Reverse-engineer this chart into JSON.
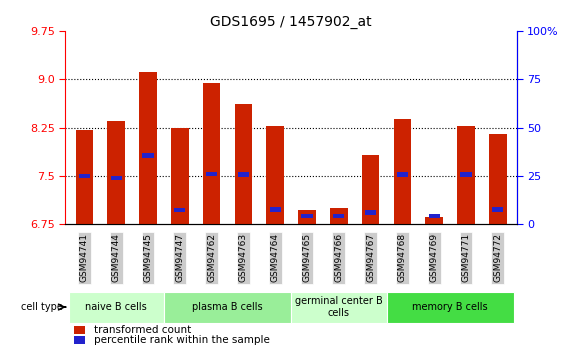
{
  "title": "GDS1695 / 1457902_at",
  "samples": [
    "GSM94741",
    "GSM94744",
    "GSM94745",
    "GSM94747",
    "GSM94762",
    "GSM94763",
    "GSM94764",
    "GSM94765",
    "GSM94766",
    "GSM94767",
    "GSM94768",
    "GSM94769",
    "GSM94771",
    "GSM94772"
  ],
  "transformed_count": [
    8.22,
    8.35,
    9.12,
    8.25,
    8.95,
    8.62,
    8.28,
    6.97,
    7.01,
    7.82,
    8.38,
    6.86,
    8.28,
    8.15
  ],
  "percentile_rank": [
    7.5,
    7.47,
    7.82,
    6.97,
    7.53,
    7.52,
    6.98,
    6.88,
    6.88,
    6.93,
    7.52,
    6.88,
    7.52,
    6.98
  ],
  "ymin": 6.75,
  "ymax": 9.75,
  "yticks": [
    6.75,
    7.5,
    8.25,
    9.0,
    9.75
  ],
  "right_yticks": [
    0,
    25,
    50,
    75,
    100
  ],
  "cell_type_groups": [
    {
      "label": "naive B cells",
      "start": 0,
      "end": 2,
      "color": "#ccffcc"
    },
    {
      "label": "plasma B cells",
      "start": 3,
      "end": 6,
      "color": "#99ee99"
    },
    {
      "label": "germinal center B\ncells",
      "start": 7,
      "end": 9,
      "color": "#ccffcc"
    },
    {
      "label": "memory B cells",
      "start": 10,
      "end": 13,
      "color": "#44dd44"
    }
  ],
  "bar_color": "#cc2200",
  "blue_color": "#2222cc",
  "tick_bg_color": "#cccccc",
  "plot_bg_color": "#ffffff",
  "bar_width": 0.55,
  "blue_bar_width": 0.35,
  "blue_bar_height": 0.07
}
